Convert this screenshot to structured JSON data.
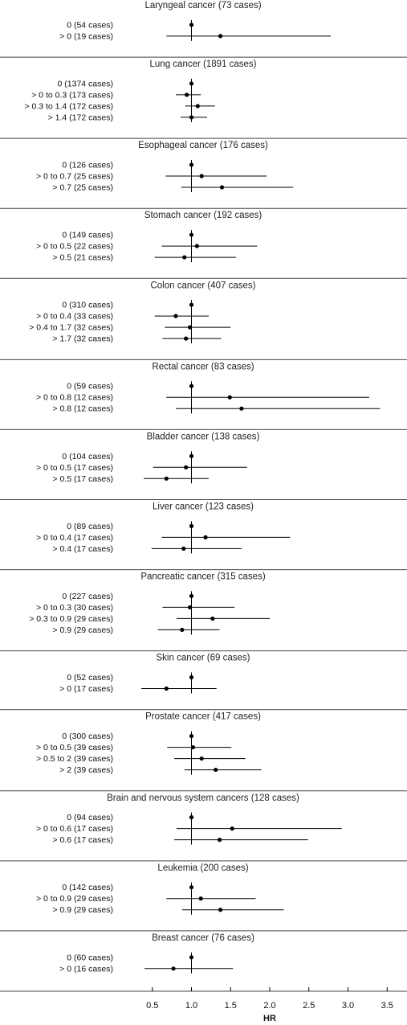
{
  "chart_data": {
    "type": "forest",
    "xlabel": "HR",
    "xlim": [
      0.0,
      3.7
    ],
    "xticks": [
      0.5,
      1.0,
      1.5,
      2.0,
      2.5,
      3.0,
      3.5
    ],
    "xtick_labels": [
      "0.5",
      "1.0",
      "1.5",
      "2.0",
      "2.5",
      "3.0",
      "3.5"
    ],
    "reference_line": 1.0,
    "panels": [
      {
        "title": "Laryngeal cancer (73 cases)",
        "rows": [
          {
            "label": "0 (54 cases)",
            "hr": 1.0,
            "lo": null,
            "hi": null
          },
          {
            "label": "> 0 (19 cases)",
            "hr": 1.37,
            "lo": 0.68,
            "hi": 2.78
          }
        ]
      },
      {
        "title": "Lung cancer (1891 cases)",
        "rows": [
          {
            "label": "0 (1374 cases)",
            "hr": 1.0,
            "lo": null,
            "hi": null
          },
          {
            "label": "> 0 to 0.3 (173 cases)",
            "hr": 0.94,
            "lo": 0.8,
            "hi": 1.12
          },
          {
            "label": "> 0.3 to 1.4 (172 cases)",
            "hr": 1.08,
            "lo": 0.92,
            "hi": 1.3
          },
          {
            "label": "> 1.4 (172 cases)",
            "hr": 1.0,
            "lo": 0.86,
            "hi": 1.2
          }
        ]
      },
      {
        "title": "Esophageal cancer (176 cases)",
        "rows": [
          {
            "label": "0 (126 cases)",
            "hr": 1.0,
            "lo": null,
            "hi": null
          },
          {
            "label": "> 0 to 0.7 (25 cases)",
            "hr": 1.13,
            "lo": 0.67,
            "hi": 1.96
          },
          {
            "label": "> 0.7 (25 cases)",
            "hr": 1.39,
            "lo": 0.87,
            "hi": 2.3
          }
        ]
      },
      {
        "title": "Stomach cancer (192 cases)",
        "rows": [
          {
            "label": "0 (149 cases)",
            "hr": 1.0,
            "lo": null,
            "hi": null
          },
          {
            "label": "> 0 to 0.5 (22 cases)",
            "hr": 1.07,
            "lo": 0.62,
            "hi": 1.84
          },
          {
            "label": "> 0.5 (21 cases)",
            "hr": 0.91,
            "lo": 0.53,
            "hi": 1.57
          }
        ]
      },
      {
        "title": "Colon cancer (407 cases)",
        "rows": [
          {
            "label": "0 (310 cases)",
            "hr": 1.0,
            "lo": null,
            "hi": null
          },
          {
            "label": "> 0 to 0.4 (33 cases)",
            "hr": 0.8,
            "lo": 0.53,
            "hi": 1.22
          },
          {
            "label": "> 0.4 to 1.7 (32 cases)",
            "hr": 0.98,
            "lo": 0.66,
            "hi": 1.5
          },
          {
            "label": "> 1.7 (32 cases)",
            "hr": 0.93,
            "lo": 0.63,
            "hi": 1.38
          }
        ]
      },
      {
        "title": "Rectal cancer (83 cases)",
        "rows": [
          {
            "label": "0 (59 cases)",
            "hr": 1.0,
            "lo": null,
            "hi": null
          },
          {
            "label": "> 0 to 0.8 (12 cases)",
            "hr": 1.49,
            "lo": 0.68,
            "hi": 3.27
          },
          {
            "label": "> 0.8 (12 cases)",
            "hr": 1.64,
            "lo": 0.8,
            "hi": 3.41
          }
        ]
      },
      {
        "title": "Bladder cancer (138 cases)",
        "rows": [
          {
            "label": "0 (104 cases)",
            "hr": 1.0,
            "lo": null,
            "hi": null
          },
          {
            "label": "> 0 to 0.5 (17 cases)",
            "hr": 0.93,
            "lo": 0.51,
            "hi": 1.71
          },
          {
            "label": "> 0.5 (17 cases)",
            "hr": 0.68,
            "lo": 0.39,
            "hi": 1.22
          }
        ]
      },
      {
        "title": "Liver cancer (123 cases)",
        "rows": [
          {
            "label": "0 (89 cases)",
            "hr": 1.0,
            "lo": null,
            "hi": null
          },
          {
            "label": "> 0 to 0.4 (17 cases)",
            "hr": 1.18,
            "lo": 0.62,
            "hi": 2.26
          },
          {
            "label": "> 0.4 (17 cases)",
            "hr": 0.9,
            "lo": 0.49,
            "hi": 1.64
          }
        ]
      },
      {
        "title": "Pancreatic cancer (315 cases)",
        "rows": [
          {
            "label": "0 (227 cases)",
            "hr": 1.0,
            "lo": null,
            "hi": null
          },
          {
            "label": "> 0 to 0.3 (30 cases)",
            "hr": 0.98,
            "lo": 0.63,
            "hi": 1.55
          },
          {
            "label": "> 0.3 to 0.9 (29 cases)",
            "hr": 1.27,
            "lo": 0.81,
            "hi": 2.0
          },
          {
            "label": "> 0.9 (29 cases)",
            "hr": 0.88,
            "lo": 0.57,
            "hi": 1.36
          }
        ]
      },
      {
        "title": "Skin cancer (69 cases)",
        "rows": [
          {
            "label": "0 (52 cases)",
            "hr": 1.0,
            "lo": null,
            "hi": null
          },
          {
            "label": "> 0 (17 cases)",
            "hr": 0.68,
            "lo": 0.36,
            "hi": 1.32
          }
        ]
      },
      {
        "title": "Prostate cancer (417 cases)",
        "rows": [
          {
            "label": "0 (300 cases)",
            "hr": 1.0,
            "lo": null,
            "hi": null
          },
          {
            "label": "> 0 to 0.5 (39 cases)",
            "hr": 1.02,
            "lo": 0.69,
            "hi": 1.51
          },
          {
            "label": "> 0.5 to 2 (39 cases)",
            "hr": 1.13,
            "lo": 0.78,
            "hi": 1.69
          },
          {
            "label": "> 2 (39 cases)",
            "hr": 1.31,
            "lo": 0.91,
            "hi": 1.89
          }
        ]
      },
      {
        "title": "Brain and nervous system cancers (128 cases)",
        "rows": [
          {
            "label": "0 (94 cases)",
            "hr": 1.0,
            "lo": null,
            "hi": null
          },
          {
            "label": "> 0 to 0.6 (17 cases)",
            "hr": 1.52,
            "lo": 0.81,
            "hi": 2.92
          },
          {
            "label": "> 0.6 (17 cases)",
            "hr": 1.36,
            "lo": 0.78,
            "hi": 2.49
          }
        ]
      },
      {
        "title": "Leukemia (200 cases)",
        "rows": [
          {
            "label": "0 (142 cases)",
            "hr": 1.0,
            "lo": null,
            "hi": null
          },
          {
            "label": "> 0 to 0.9 (29 cases)",
            "hr": 1.12,
            "lo": 0.68,
            "hi": 1.82
          },
          {
            "label": "> 0.9 (29 cases)",
            "hr": 1.37,
            "lo": 0.88,
            "hi": 2.18
          }
        ]
      },
      {
        "title": "Breast cancer (76 cases)",
        "rows": [
          {
            "label": "0 (60 cases)",
            "hr": 1.0,
            "lo": null,
            "hi": null
          },
          {
            "label": "> 0 (16 cases)",
            "hr": 0.77,
            "lo": 0.4,
            "hi": 1.53
          }
        ]
      }
    ]
  }
}
